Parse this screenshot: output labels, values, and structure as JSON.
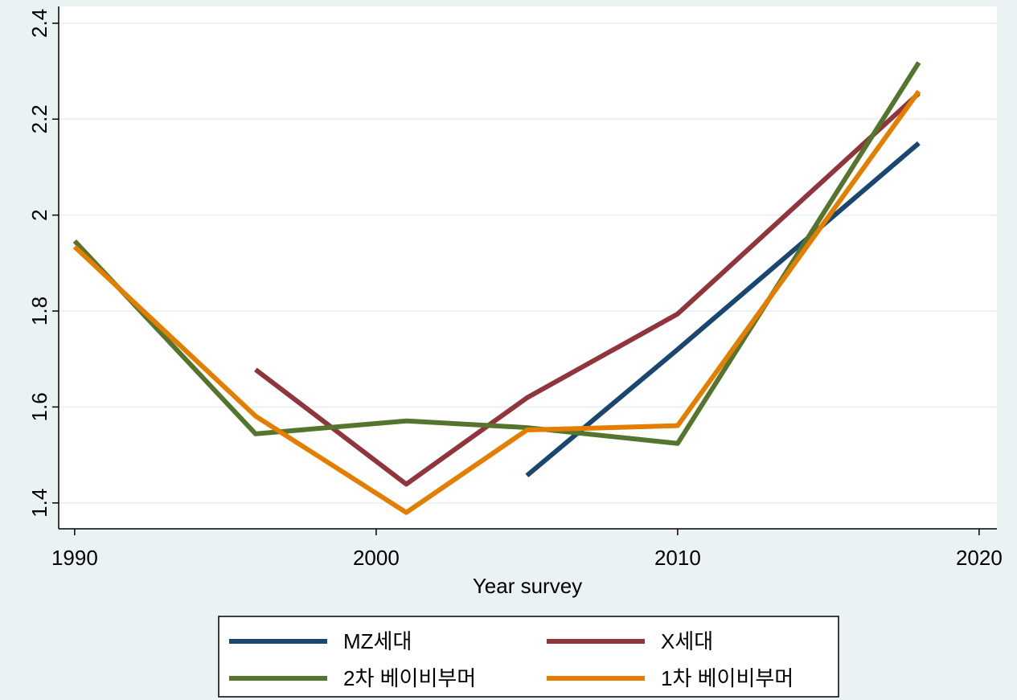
{
  "chart_data": {
    "type": "line",
    "x_label": "Year survey",
    "x": [
      1990,
      1996,
      2001,
      2005,
      2010,
      2018
    ],
    "series": [
      {
        "name": "MZ세대",
        "color": "#1a476f",
        "values": [
          null,
          null,
          null,
          1.457,
          1.72,
          2.15
        ]
      },
      {
        "name": "X세대",
        "color": "#90353b",
        "values": [
          null,
          1.678,
          1.439,
          1.619,
          1.794,
          2.254
        ]
      },
      {
        "name": "2차 베이비부머",
        "color": "#55752f",
        "values": [
          1.946,
          1.544,
          1.571,
          1.557,
          1.524,
          2.318
        ]
      },
      {
        "name": "1차 베이비부머",
        "color": "#e37e00",
        "values": [
          1.934,
          1.581,
          1.38,
          1.552,
          1.561,
          2.258
        ]
      }
    ],
    "xlim": [
      1989.47,
      2020.59
    ],
    "xticks": [
      1990,
      2000,
      2010,
      2020
    ],
    "ylim": [
      1.346,
      2.435
    ],
    "yticks": [
      1.4,
      1.6,
      1.8,
      2,
      2.2,
      2.4
    ],
    "grid": true,
    "legend": "bottom"
  }
}
